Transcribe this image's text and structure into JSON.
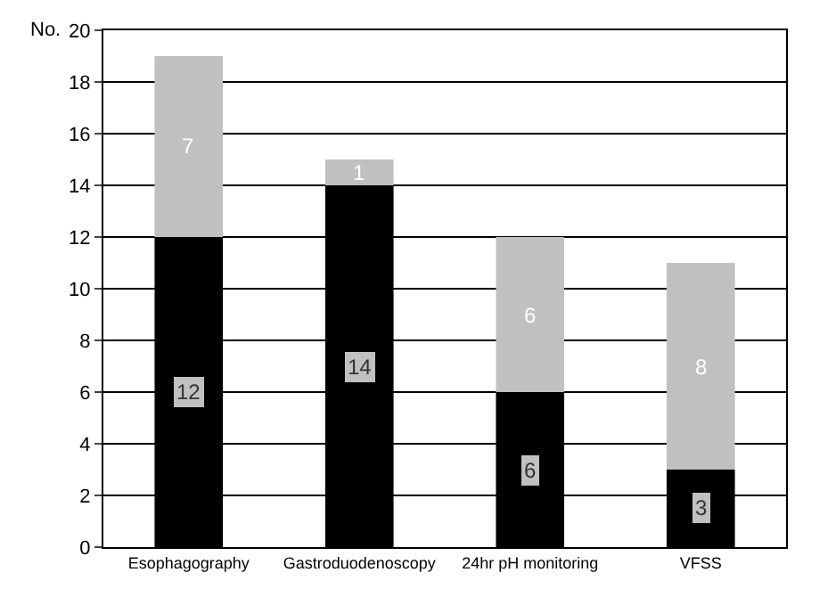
{
  "chart_data": {
    "type": "bar",
    "stacked": true,
    "ylabel": "No.",
    "categories": [
      "Esophagography",
      "Gastroduodenoscopy",
      "24hr pH monitoring",
      "VFSS"
    ],
    "series": [
      {
        "color": "#000000",
        "values": [
          12,
          14,
          6,
          3
        ]
      },
      {
        "color": "#c0c0c0",
        "values": [
          7,
          1,
          6,
          8
        ]
      }
    ],
    "ylim": [
      0,
      20
    ],
    "yticks": [
      0,
      2,
      4,
      6,
      8,
      10,
      12,
      14,
      16,
      18,
      20
    ],
    "grid": "y",
    "data_labels": true
  }
}
